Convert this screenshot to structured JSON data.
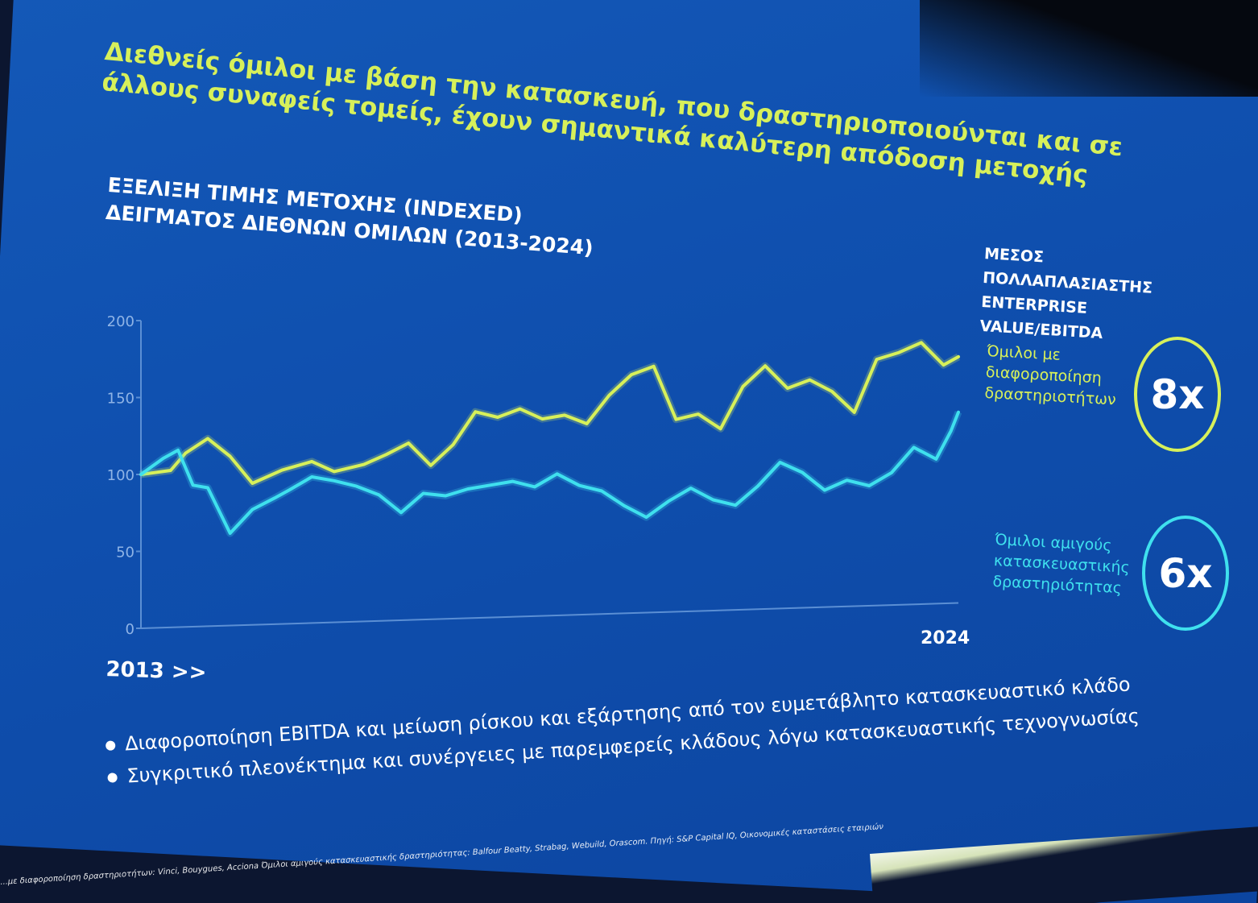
{
  "slide": {
    "headline": "Διεθνείς όμιλοι με βάση την κατασκευή, που δραστηριοποιούνται και σε άλλους συναφείς τομείς, έχουν σημαντικά καλύτερη απόδοση μετοχής",
    "chart_title_line1": "ΕΞΕΛΙΞΗ ΤΙΜΗΣ ΜΕΤΟΧΗΣ (INDEXED)",
    "chart_title_line2": "ΔΕΙΓΜΑΤΟΣ ΔΙΕΘΝΩΝ ΟΜΙΛΩΝ (2013-2024)",
    "side_title_line1": "ΜΕΣΟΣ ΠΟΛΛΑΠΛΑΣΙΑΣΤΗΣ",
    "side_title_line2": "ENTERPRISE VALUE/EBITDA",
    "groups": [
      {
        "label_lines": [
          "Όμιλοι με",
          "διαφοροποίηση",
          "δραστηριοτήτων"
        ],
        "multiple": "8x",
        "color": "#d7f05a"
      },
      {
        "label_lines": [
          "Όμιλοι αμιγούς",
          "κατασκευαστικής",
          "δραστηριότητας"
        ],
        "multiple": "6x",
        "color": "#3fe0ee"
      }
    ],
    "start_label": "2013 >>",
    "end_label": "2024",
    "bullets": [
      "Διαφοροποίηση EBITDA και μείωση ρίσκου και εξάρτησης από τον ευμετάβλητο κατασκευαστικό κλάδο",
      "Συγκριτικό πλεονέκτημα και συνέργειες με παρεμφερείς κλάδους λόγω κατασκευαστικής τεχνογνωσίας"
    ],
    "footnote": "...με διαφοροποίηση δραστηριοτήτων: Vinci, Bouygues, Acciona   Όμιλοι αμιγούς κατασκευαστικής δραστηριότητας: Balfour Beatty, Strabag, Webuild, Orascom.  Πηγή: S&P Capital IQ, Οικονομικές καταστάσεις εταιριών"
  },
  "chart_data": {
    "type": "line",
    "title": "ΕΞΕΛΙΞΗ ΤΙΜΗΣ ΜΕΤΟΧΗΣ (INDEXED) ΔΕΙΓΜΑΤΟΣ ΔΙΕΘΝΩΝ ΟΜΙΛΩΝ (2013-2024)",
    "xlabel": "",
    "ylabel": "",
    "ylim": [
      0,
      200
    ],
    "yticks": [
      0,
      50,
      100,
      150,
      200
    ],
    "xrange": [
      2013,
      2024
    ],
    "grid": false,
    "series": [
      {
        "name": "Όμιλοι με διαφοροποίηση δραστηριοτήτων",
        "color": "#d7f05a",
        "x": [
          2013.0,
          2013.4,
          2013.6,
          2013.9,
          2014.2,
          2014.5,
          2014.9,
          2015.3,
          2015.6,
          2016.0,
          2016.3,
          2016.6,
          2016.9,
          2017.2,
          2017.5,
          2017.8,
          2018.1,
          2018.4,
          2018.7,
          2019.0,
          2019.3,
          2019.6,
          2019.9,
          2020.2,
          2020.5,
          2020.8,
          2021.1,
          2021.4,
          2021.7,
          2022.0,
          2022.3,
          2022.6,
          2022.9,
          2023.2,
          2023.5,
          2023.8,
          2024.0
        ],
        "values": [
          100,
          102,
          113,
          122,
          110,
          92,
          100,
          105,
          98,
          102,
          108,
          115,
          100,
          113,
          134,
          130,
          135,
          128,
          130,
          124,
          142,
          155,
          160,
          125,
          128,
          118,
          145,
          158,
          143,
          148,
          140,
          126,
          160,
          164,
          170,
          155,
          160
        ]
      },
      {
        "name": "Όμιλοι αμιγούς κατασκευαστικής δραστηριότητας",
        "color": "#3fe0ee",
        "x": [
          2013.0,
          2013.3,
          2013.5,
          2013.7,
          2013.9,
          2014.2,
          2014.5,
          2014.8,
          2015.0,
          2015.3,
          2015.6,
          2015.9,
          2016.2,
          2016.5,
          2016.8,
          2017.1,
          2017.4,
          2017.7,
          2018.0,
          2018.3,
          2018.6,
          2018.9,
          2019.2,
          2019.5,
          2019.8,
          2020.1,
          2020.4,
          2020.7,
          2021.0,
          2021.3,
          2021.6,
          2021.9,
          2022.2,
          2022.5,
          2022.8,
          2023.1,
          2023.4,
          2023.7,
          2023.9,
          2024.0
        ],
        "values": [
          100,
          110,
          115,
          92,
          90,
          60,
          75,
          82,
          87,
          95,
          92,
          88,
          82,
          70,
          82,
          80,
          84,
          86,
          88,
          84,
          92,
          84,
          80,
          70,
          62,
          72,
          80,
          72,
          68,
          80,
          95,
          88,
          76,
          82,
          78,
          86,
          102,
          94,
          112,
          124
        ]
      }
    ]
  }
}
